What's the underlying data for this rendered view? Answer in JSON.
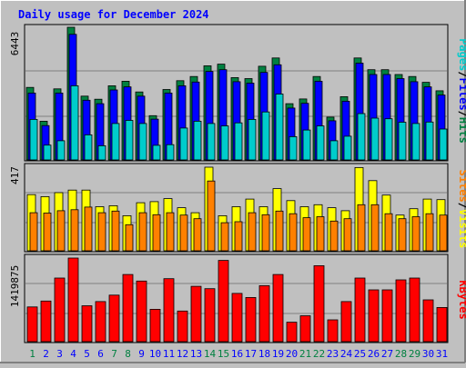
{
  "title": "Daily usage for December 2024",
  "colors": {
    "background": "#c0c0c0",
    "panel": "#c0c0c0",
    "title": "#0000ff",
    "pages": "#00cccc",
    "files": "#0000ff",
    "hits": "#008040",
    "sites": "#ff8000",
    "visits": "#ffff00",
    "kbytes": "#ff0000",
    "weekend_day": "#008040",
    "weekday": "#0000ff",
    "slash": "#000000"
  },
  "chart_data": [
    {
      "type": "bar",
      "name": "hits-files-pages",
      "ymax_label": "6443",
      "ymax": 6443,
      "legend": [
        "Pages",
        "/",
        "Files",
        "/",
        "Hits"
      ],
      "categories": [
        "1",
        "2",
        "3",
        "4",
        "5",
        "6",
        "7",
        "8",
        "9",
        "10",
        "11",
        "12",
        "13",
        "14",
        "15",
        "16",
        "17",
        "18",
        "19",
        "20",
        "21",
        "22",
        "23",
        "24",
        "25",
        "26",
        "27",
        "28",
        "29",
        "30",
        "31"
      ],
      "series": [
        {
          "name": "Hits",
          "values": [
            3520,
            1880,
            3450,
            6443,
            3100,
            2950,
            3600,
            3820,
            3300,
            2150,
            3420,
            3850,
            4050,
            4570,
            4650,
            4000,
            3950,
            4550,
            4950,
            2730,
            2960,
            4050,
            2080,
            3070,
            4950,
            4380,
            4380,
            4150,
            4050,
            3770,
            3360
          ]
        },
        {
          "name": "Files",
          "values": [
            3250,
            1670,
            3250,
            6100,
            2900,
            2730,
            3400,
            3550,
            3100,
            1980,
            3250,
            3600,
            3780,
            4300,
            4380,
            3800,
            3730,
            4250,
            4620,
            2520,
            2750,
            3820,
            1900,
            2850,
            4700,
            4150,
            4150,
            3950,
            3800,
            3550,
            3150
          ]
        },
        {
          "name": "Pages",
          "values": [
            1970,
            720,
            930,
            3600,
            1220,
            690,
            1770,
            1920,
            1770,
            710,
            740,
            1550,
            1880,
            1770,
            1650,
            1800,
            1970,
            2330,
            3200,
            1130,
            1450,
            1650,
            930,
            1150,
            2250,
            2030,
            2000,
            1830,
            1770,
            1840,
            1500
          ]
        }
      ]
    },
    {
      "type": "bar",
      "name": "visits-sites",
      "ymax_label": "417",
      "ymax": 417,
      "legend": [
        "Sites",
        "/",
        "Visits"
      ],
      "series": [
        {
          "name": "Visits",
          "values": [
            280,
            270,
            290,
            303,
            303,
            220,
            225,
            175,
            240,
            245,
            260,
            215,
            190,
            417,
            175,
            220,
            258,
            220,
            310,
            250,
            220,
            230,
            215,
            200,
            415,
            350,
            278,
            178,
            210,
            258,
            255
          ]
        },
        {
          "name": "Sites",
          "values": [
            190,
            188,
            200,
            205,
            218,
            190,
            198,
            130,
            190,
            180,
            190,
            178,
            160,
            348,
            140,
            145,
            190,
            180,
            198,
            185,
            165,
            170,
            148,
            160,
            230,
            230,
            185,
            160,
            170,
            185,
            178
          ]
        }
      ]
    },
    {
      "type": "bar",
      "name": "kbytes",
      "ymax_label": "1419875",
      "ymax": 1419875,
      "legend": [
        "KBytes"
      ],
      "series": [
        {
          "name": "KBytes",
          "values": [
            590000,
            690000,
            1080000,
            1419875,
            610000,
            680000,
            790000,
            1140000,
            1030000,
            550000,
            1070000,
            520000,
            940000,
            900000,
            1380000,
            820000,
            750000,
            950000,
            1140000,
            330000,
            440000,
            1290000,
            370000,
            680000,
            1080000,
            880000,
            880000,
            1050000,
            1080000,
            710000,
            580000
          ]
        }
      ]
    }
  ]
}
